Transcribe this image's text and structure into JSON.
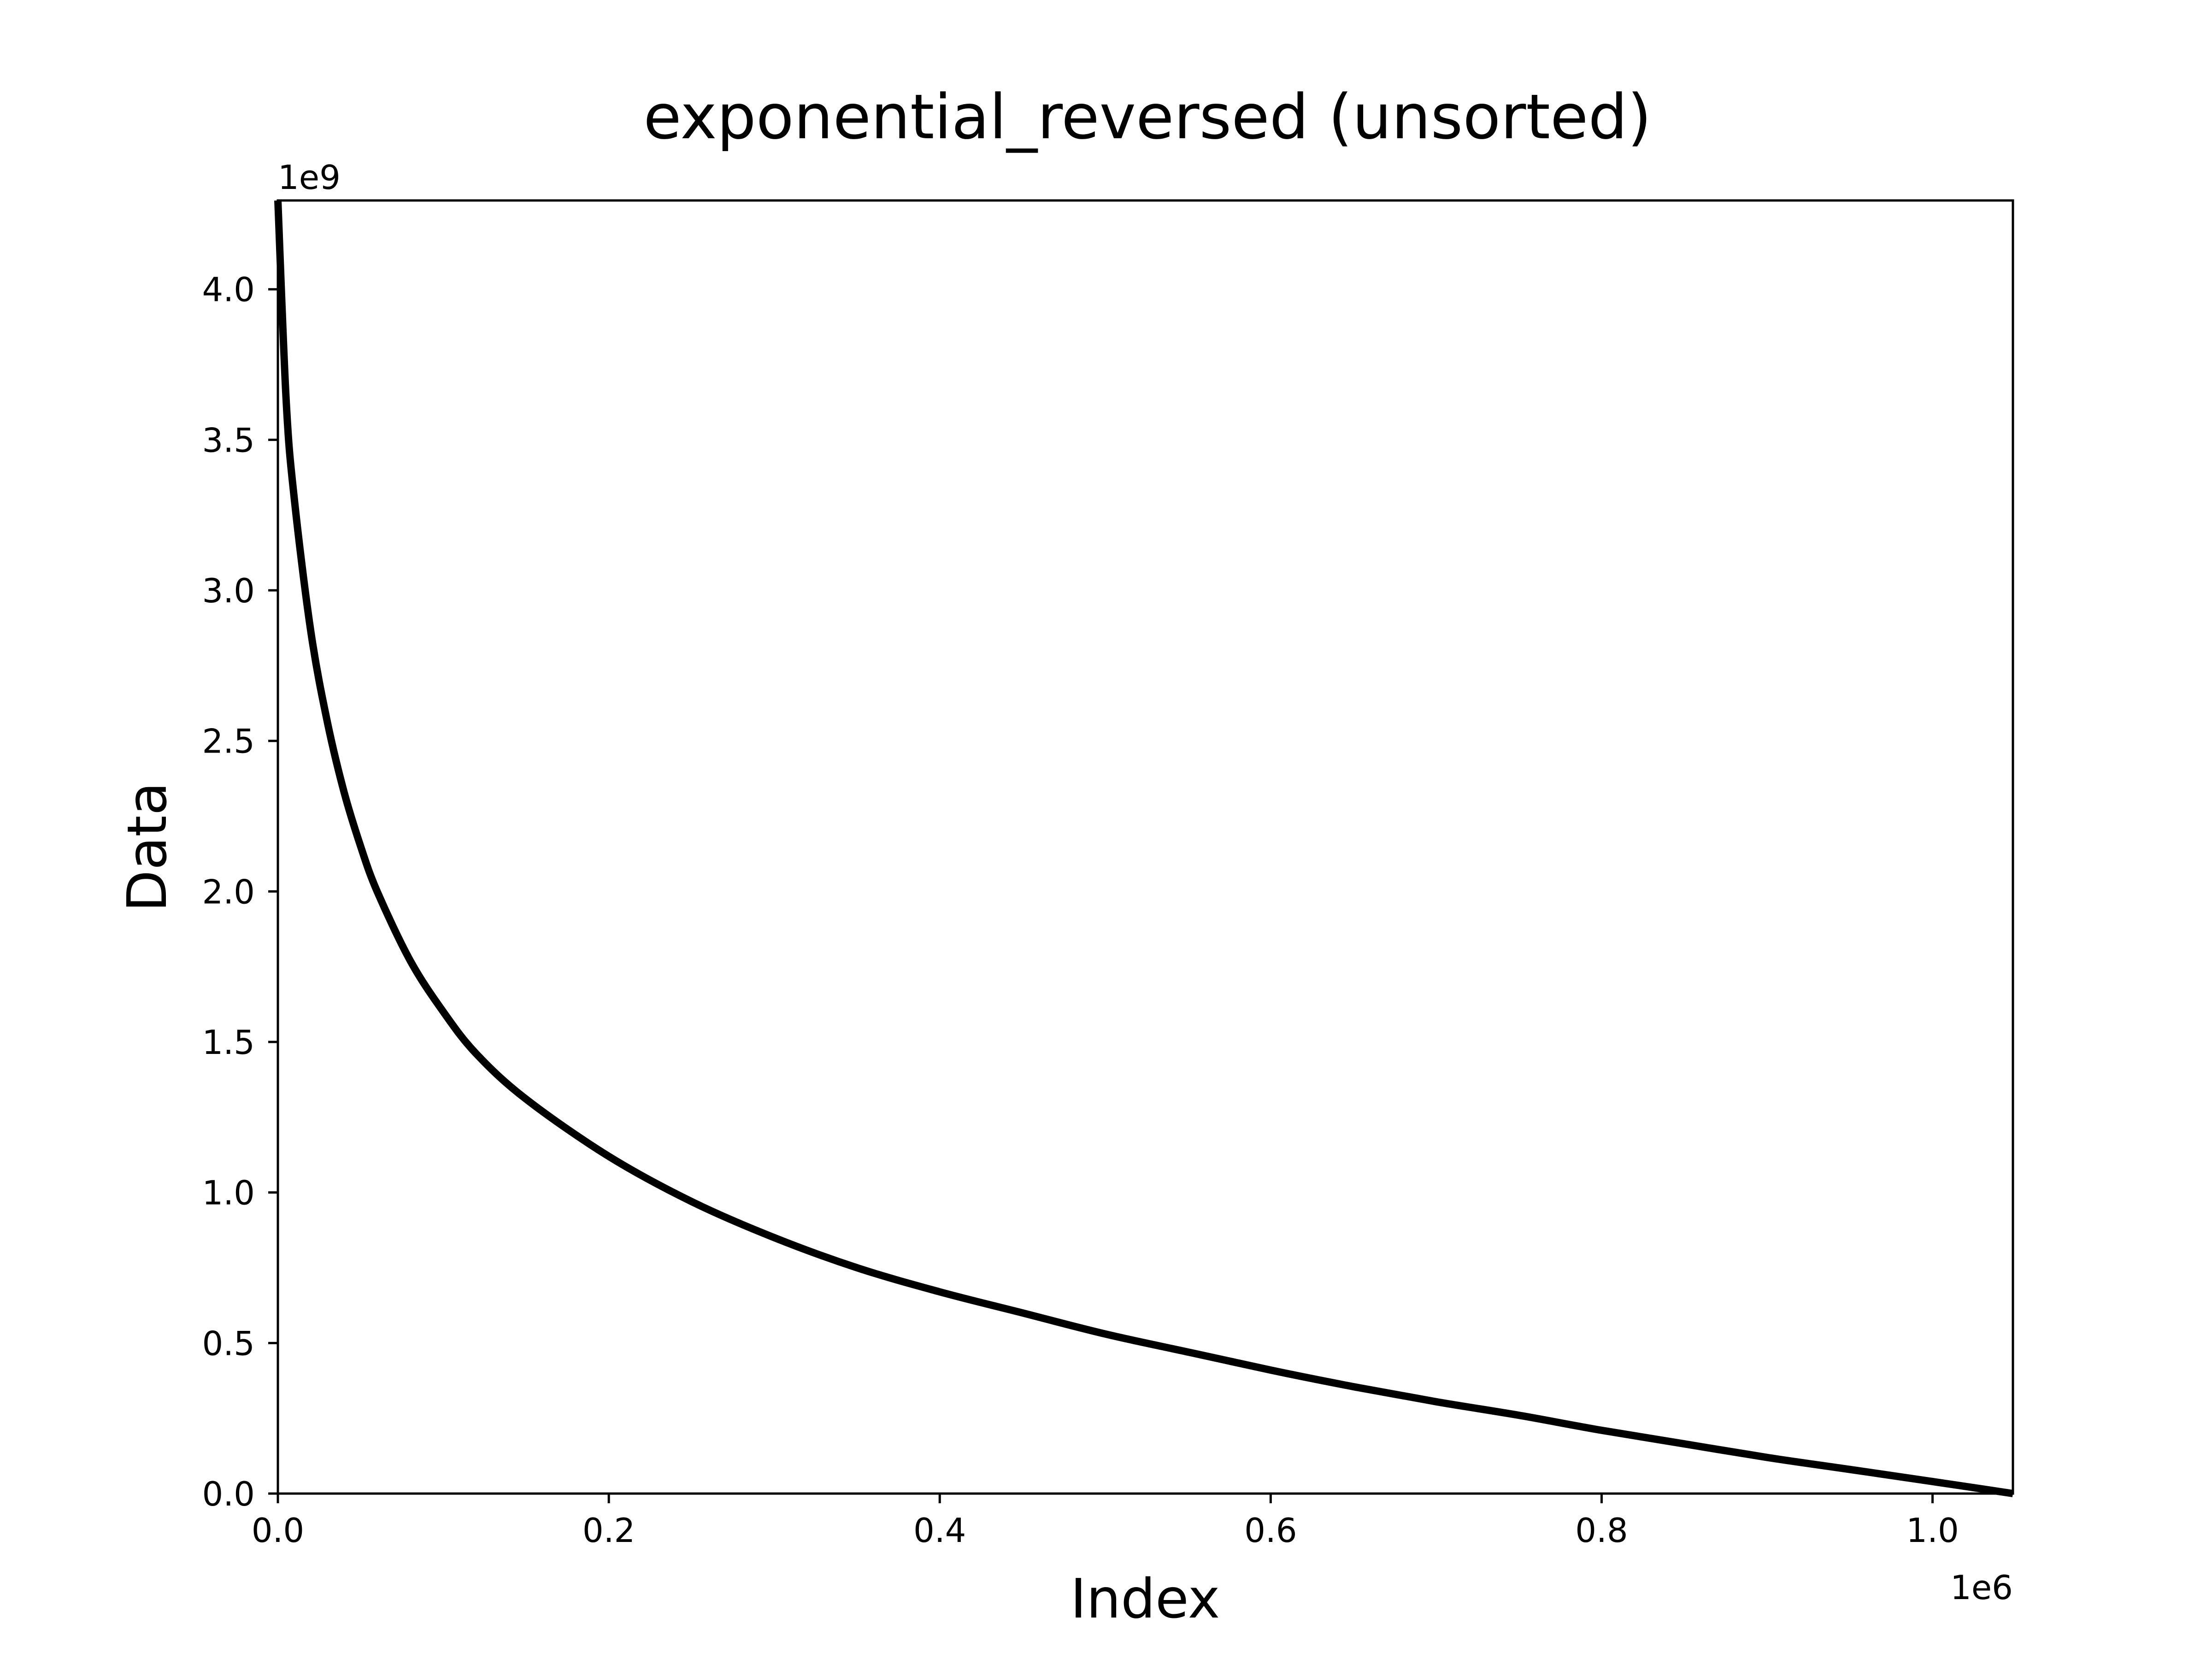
{
  "chart_data": {
    "type": "line",
    "title": "exponential_reversed (unsorted)",
    "xlabel": "Index",
    "ylabel": "Data",
    "xlim": [
      0,
      1048576
    ],
    "ylim": [
      0,
      4294967296
    ],
    "x_offset_label": "1e6",
    "y_offset_label": "1e9",
    "x_ticks": [
      0,
      200000,
      400000,
      600000,
      800000,
      1000000
    ],
    "x_tick_labels": [
      "0.0",
      "0.2",
      "0.4",
      "0.6",
      "0.8",
      "1.0"
    ],
    "y_ticks": [
      0,
      500000000,
      1000000000,
      1500000000,
      2000000000,
      2500000000,
      3000000000,
      3500000000,
      4000000000
    ],
    "y_tick_labels": [
      "0.0",
      "0.5",
      "1.0",
      "1.5",
      "2.0",
      "2.5",
      "3.0",
      "3.5",
      "4.0"
    ],
    "grid": false,
    "legend": "none",
    "series": [
      {
        "color": "#000000",
        "x": [
          0,
          5000,
          10000,
          20000,
          30000,
          40000,
          50000,
          60000,
          80000,
          100000,
          120000,
          150000,
          200000,
          250000,
          300000,
          350000,
          400000,
          450000,
          500000,
          550000,
          600000,
          650000,
          700000,
          750000,
          800000,
          850000,
          900000,
          950000,
          1000000,
          1048576
        ],
        "y": [
          4294967296,
          3630000000,
          3300000000,
          2860000000,
          2560000000,
          2330000000,
          2150000000,
          2000000000,
          1770000000,
          1600000000,
          1460000000,
          1310000000,
          1120000000,
          970000000,
          850000000,
          750000000,
          670000000,
          600000000,
          530000000,
          470000000,
          410000000,
          355000000,
          305000000,
          260000000,
          210000000,
          165000000,
          120000000,
          80000000,
          40000000,
          0
        ]
      }
    ]
  }
}
